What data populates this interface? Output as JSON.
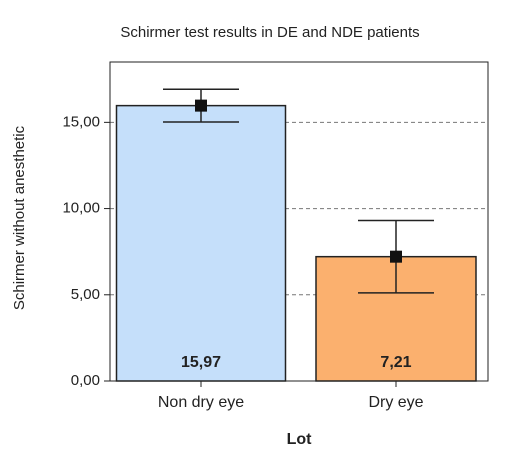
{
  "chart_data": {
    "type": "bar",
    "title": "Schirmer test results in DE and NDE patients",
    "x_label": "Lot",
    "y_label": "Schirmer without anesthetic",
    "categories": [
      "Non dry eye",
      "Dry eye"
    ],
    "values": [
      15.97,
      7.21
    ],
    "value_labels": [
      "15,97",
      "7,21"
    ],
    "errors": [
      0.95,
      2.1
    ],
    "colors": [
      "#c5dffa",
      "#fbb06e"
    ],
    "ylim": [
      0,
      18.5
    ],
    "yticks": [
      {
        "value": 0,
        "label": "0,00"
      },
      {
        "value": 5,
        "label": "5,00"
      },
      {
        "value": 10,
        "label": "10,00"
      },
      {
        "value": 15,
        "label": "15,00"
      }
    ],
    "grid": true
  }
}
